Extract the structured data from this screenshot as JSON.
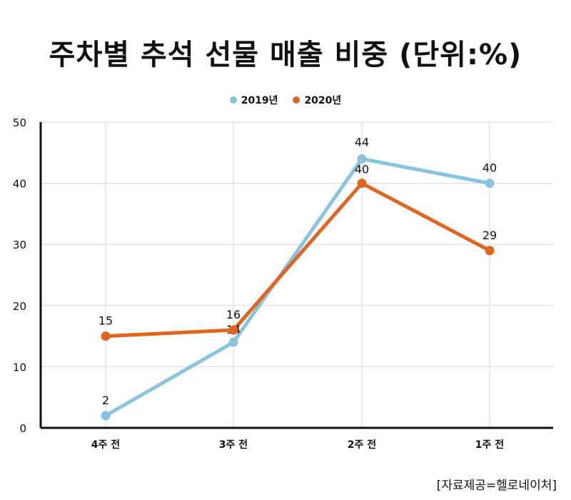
{
  "chart_data": {
    "type": "line",
    "title": "주차별 추석 선물 매출 비중 (단위:%)",
    "categories": [
      "4주 전",
      "3주 전",
      "2주 전",
      "1주 전"
    ],
    "series": [
      {
        "name": "2019년",
        "color": "#8ac3df",
        "values": [
          2,
          14,
          44,
          40
        ]
      },
      {
        "name": "2020년",
        "color": "#e06521",
        "values": [
          15,
          16,
          40,
          29
        ]
      }
    ],
    "yticks": [
      "0",
      "10",
      "20",
      "30",
      "40",
      "50"
    ],
    "ylim": [
      0,
      50
    ],
    "grid": true,
    "legend": "top-center"
  },
  "source": "[자료제공=헬로네이처]"
}
